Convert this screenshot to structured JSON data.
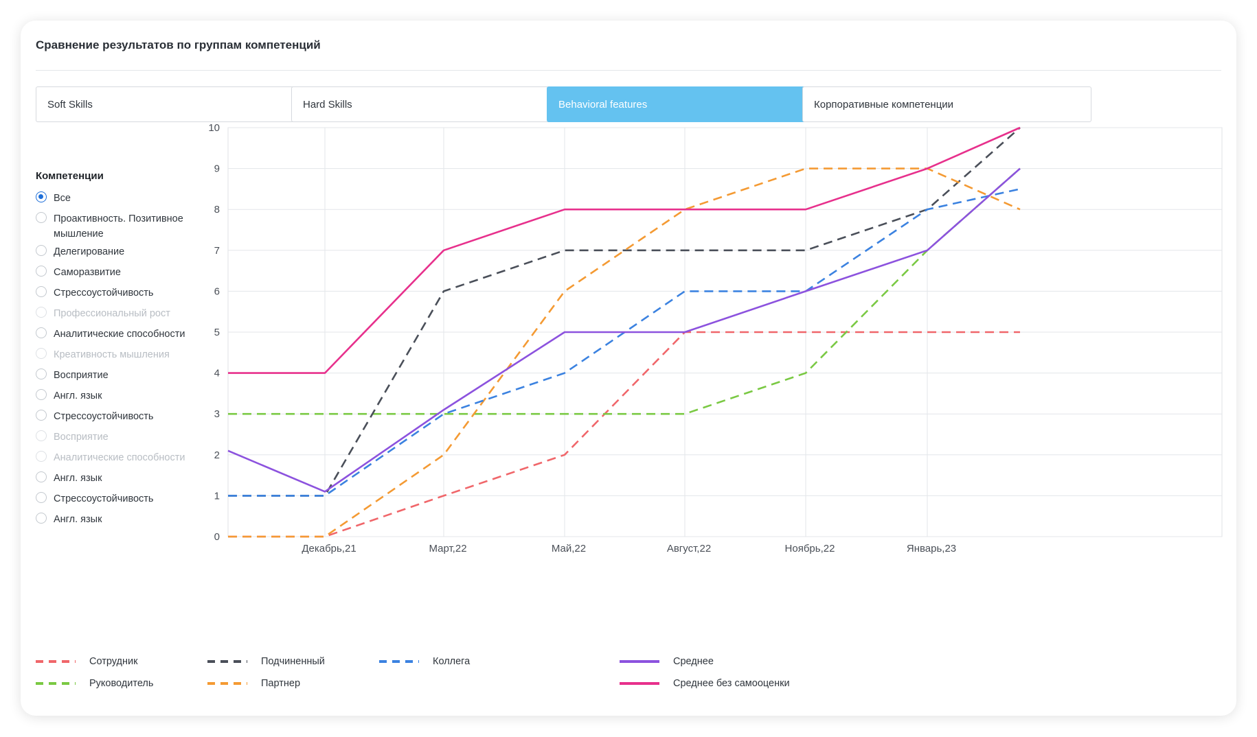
{
  "title": "Сравнение результатов по группам компетенций",
  "tabs": [
    {
      "label": "Soft Skills",
      "active": false
    },
    {
      "label": "Hard Skills",
      "active": false
    },
    {
      "label": "Behavioral features",
      "active": true
    },
    {
      "label": "Корпоративные компетенции",
      "active": false
    }
  ],
  "competencies": {
    "heading": "Компетенции",
    "items": [
      {
        "label": "Все",
        "checked": true,
        "disabled": false
      },
      {
        "label": "Проактивность. Позитивное мышление",
        "checked": false,
        "disabled": false
      },
      {
        "label": "Делегирование",
        "checked": false,
        "disabled": false
      },
      {
        "label": "Саморазвитие",
        "checked": false,
        "disabled": false
      },
      {
        "label": "Стрессоустойчивость",
        "checked": false,
        "disabled": false
      },
      {
        "label": "Профессиональный рост",
        "checked": false,
        "disabled": true
      },
      {
        "label": "Аналитические способности",
        "checked": false,
        "disabled": false
      },
      {
        "label": "Креативность мышления",
        "checked": false,
        "disabled": true
      },
      {
        "label": "Восприятие",
        "checked": false,
        "disabled": false
      },
      {
        "label": "Англ. язык",
        "checked": false,
        "disabled": false
      },
      {
        "label": "Стрессоустойчивость",
        "checked": false,
        "disabled": false
      },
      {
        "label": "Восприятие",
        "checked": false,
        "disabled": true
      },
      {
        "label": "Аналитические способности",
        "checked": false,
        "disabled": true
      },
      {
        "label": "Англ. язык",
        "checked": false,
        "disabled": false
      },
      {
        "label": "Стрессоустойчивость",
        "checked": false,
        "disabled": false
      },
      {
        "label": "Англ. язык",
        "checked": false,
        "disabled": false
      }
    ]
  },
  "chart_data": {
    "type": "line",
    "x_tick_labels": [
      "Декабрь,21",
      "Март,22",
      "Май,22",
      "Август,22",
      "Ноябрь,22",
      "Январь,23"
    ],
    "ylim": [
      0,
      10
    ],
    "yticks": [
      0,
      1,
      2,
      3,
      4,
      5,
      6,
      7,
      8,
      9,
      10
    ],
    "grid": true,
    "legend_position": "bottom",
    "series": [
      {
        "name": "Сотрудник",
        "color": "#f0666a",
        "dashed": true,
        "values": [
          0,
          0,
          1,
          2,
          5,
          5,
          5,
          5
        ]
      },
      {
        "name": "Руководитель",
        "color": "#7ac943",
        "dashed": true,
        "values": [
          3,
          3,
          3,
          3,
          3,
          4,
          7,
          9
        ]
      },
      {
        "name": "Подчиненный",
        "color": "#4a4f59",
        "dashed": true,
        "values": [
          1,
          1,
          6,
          7,
          7,
          7,
          8,
          10
        ]
      },
      {
        "name": "Партнер",
        "color": "#f49a33",
        "dashed": true,
        "values": [
          0,
          0,
          2,
          6,
          8,
          9,
          9,
          8
        ]
      },
      {
        "name": "Коллега",
        "color": "#3b82e0",
        "dashed": true,
        "values": [
          1,
          1,
          3,
          4,
          6,
          6,
          8,
          8.5
        ]
      },
      {
        "name": "Среднее",
        "color": "#8c52de",
        "dashed": false,
        "values": [
          2.1,
          1.1,
          3.1,
          5,
          5,
          6,
          7,
          9
        ]
      },
      {
        "name": "Среднее без самооценки",
        "color": "#e7308c",
        "dashed": false,
        "values": [
          4,
          4,
          7,
          8,
          8,
          8,
          9,
          10
        ]
      }
    ]
  }
}
